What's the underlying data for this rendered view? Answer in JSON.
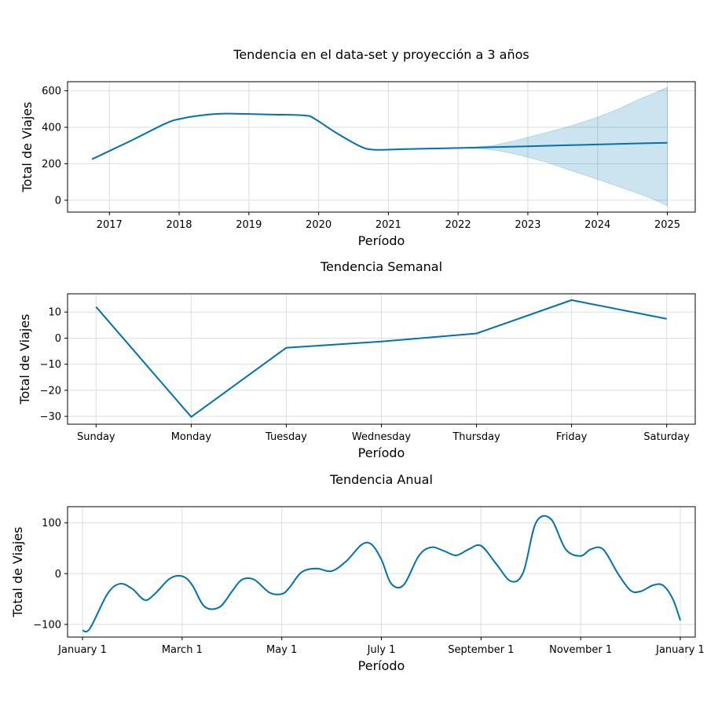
{
  "chart_data": [
    {
      "type": "line",
      "title": "Tendencia en el data-set y proyección a 3 años",
      "xlabel": "Período",
      "ylabel": "Total de Viajes",
      "x_is_year": true,
      "xlim": [
        2016.4,
        2025.4
      ],
      "ylim": [
        -65,
        650
      ],
      "xticks": [
        2017,
        2018,
        2019,
        2020,
        2021,
        2022,
        2023,
        2024,
        2025
      ],
      "xticklabels": [
        "2017",
        "2018",
        "2019",
        "2020",
        "2021",
        "2022",
        "2023",
        "2024",
        "2025"
      ],
      "yticks": [
        0,
        200,
        400,
        600
      ],
      "yticklabels": [
        "0",
        "200",
        "400",
        "600"
      ],
      "line_color": "#0072b2",
      "band_color": "#0072b2",
      "series": [
        {
          "values_x": [
            2016.75,
            2017.3,
            2017.8,
            2018.0,
            2018.3,
            2018.65,
            2019.3,
            2019.8,
            2019.95,
            2020.25,
            2020.6,
            2020.8,
            2021.2,
            2021.7,
            2022.2,
            2022.5,
            2023.0,
            2023.5,
            2024.0,
            2024.5,
            2025.0
          ],
          "values_y": [
            225,
            325,
            420,
            445,
            465,
            475,
            470,
            465,
            445,
            370,
            295,
            277,
            280,
            284,
            288,
            291,
            296,
            301,
            306,
            311,
            315
          ]
        }
      ],
      "band": {
        "x": [
          2022.2,
          2022.5,
          2022.8,
          2023.0,
          2023.3,
          2023.6,
          2024.0,
          2024.3,
          2024.6,
          2024.8,
          2025.0
        ],
        "upper": [
          290,
          300,
          325,
          345,
          375,
          405,
          455,
          500,
          555,
          585,
          620
        ],
        "lower": [
          286,
          277,
          255,
          235,
          205,
          165,
          115,
          75,
          35,
          5,
          -30
        ]
      }
    },
    {
      "type": "line",
      "title": "Tendencia Semanal",
      "xlabel": "Período",
      "ylabel": "Total de Viajes",
      "categories": [
        "Sunday",
        "Monday",
        "Tuesday",
        "Wednesday",
        "Thursday",
        "Friday",
        "Saturday"
      ],
      "xlim": [
        -0.3,
        6.3
      ],
      "ylim": [
        -33,
        17
      ],
      "yticks": [
        10,
        0,
        -10,
        -20,
        -30
      ],
      "yticklabels": [
        "10",
        "0",
        "−10",
        "−20",
        "−30"
      ],
      "line_color": "#0072b2",
      "series": [
        {
          "values": [
            12,
            -30.2,
            -3.7,
            -1.3,
            1.8,
            14.6,
            7.4
          ]
        }
      ]
    },
    {
      "type": "line",
      "title": "Tendencia Anual",
      "xlabel": "Período",
      "ylabel": "Total de Viajes",
      "xlim": [
        -0.3,
        12.3
      ],
      "ylim": [
        -125,
        132
      ],
      "xticks": [
        0,
        2,
        4,
        6,
        8,
        10,
        12
      ],
      "xticklabels": [
        "January 1",
        "March 1",
        "May 1",
        "July 1",
        "September 1",
        "November 1",
        "January 1"
      ],
      "yticks": [
        100,
        0,
        -100
      ],
      "yticklabels": [
        "100",
        "0",
        "−100"
      ],
      "line_color": "#0072b2",
      "series": [
        {
          "values_x": [
            0,
            0.15,
            0.5,
            0.75,
            1.0,
            1.25,
            1.45,
            1.75,
            2.0,
            2.2,
            2.45,
            2.75,
            3.0,
            3.2,
            3.45,
            3.75,
            4.0,
            4.15,
            4.4,
            4.7,
            5.0,
            5.3,
            5.6,
            5.8,
            6.0,
            6.2,
            6.45,
            6.75,
            7.0,
            7.25,
            7.5,
            7.75,
            8.0,
            8.3,
            8.6,
            8.85,
            9.1,
            9.4,
            9.7,
            10.0,
            10.2,
            10.45,
            10.75,
            11.0,
            11.2,
            11.45,
            11.65,
            11.85,
            12.0
          ],
          "values_y": [
            -112,
            -108,
            -40,
            -20,
            -30,
            -52,
            -40,
            -10,
            -5,
            -22,
            -65,
            -66,
            -35,
            -12,
            -12,
            -37,
            -40,
            -28,
            3,
            10,
            5,
            25,
            57,
            58,
            28,
            -20,
            -22,
            35,
            52,
            45,
            36,
            48,
            55,
            20,
            -15,
            3,
            100,
            108,
            48,
            35,
            48,
            48,
            0,
            -33,
            -35,
            -23,
            -23,
            -50,
            -92
          ]
        }
      ]
    }
  ]
}
